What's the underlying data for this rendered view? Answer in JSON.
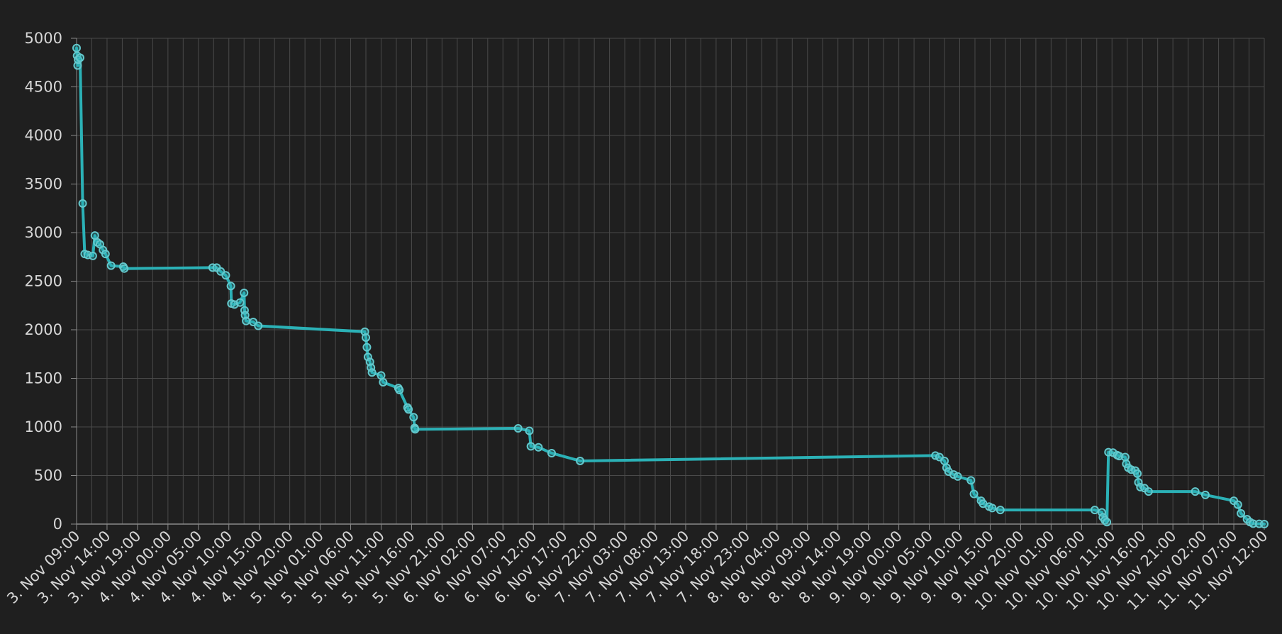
{
  "colors": {
    "background": "#1f1f1f",
    "grid": "#4a4a4a",
    "axis": "#8a8a8a",
    "tick_text": "#d6d6d6",
    "series": "#2bb1b6",
    "point_stroke": "#63c8cc"
  },
  "chart_data": {
    "type": "line",
    "title": "",
    "xlabel": "",
    "ylabel": "",
    "grid": true,
    "legend": "none",
    "ylim": [
      0,
      5000
    ],
    "y_ticks": [
      0,
      500,
      1000,
      1500,
      2000,
      2500,
      3000,
      3500,
      4000,
      4500,
      5000
    ],
    "x_range": [
      "3. Nov 09:00",
      "11. Nov 12:00"
    ],
    "x_ticks": [
      "3. Nov 09:00",
      "3. Nov 14:00",
      "3. Nov 19:00",
      "4. Nov 00:00",
      "4. Nov 05:00",
      "4. Nov 10:00",
      "4. Nov 15:00",
      "4. Nov 20:00",
      "5. Nov 01:00",
      "5. Nov 06:00",
      "5. Nov 11:00",
      "5. Nov 16:00",
      "5. Nov 21:00",
      "6. Nov 02:00",
      "6. Nov 07:00",
      "6. Nov 12:00",
      "6. Nov 17:00",
      "6. Nov 22:00",
      "7. Nov 03:00",
      "7. Nov 08:00",
      "7. Nov 13:00",
      "7. Nov 18:00",
      "7. Nov 23:00",
      "8. Nov 04:00",
      "8. Nov 09:00",
      "8. Nov 14:00",
      "8. Nov 19:00",
      "9. Nov 00:00",
      "9. Nov 05:00",
      "9. Nov 10:00",
      "9. Nov 15:00",
      "9. Nov 20:00",
      "10. Nov 01:00",
      "10. Nov 06:00",
      "10. Nov 11:00",
      "10. Nov 16:00",
      "10. Nov 21:00",
      "11. Nov 02:00",
      "11. Nov 07:00",
      "11. Nov 12:00"
    ],
    "series": [
      {
        "color": "#2bb1b6",
        "points": [
          {
            "x": "3. Nov 09:00",
            "y": 4900
          },
          {
            "x": "3. Nov 09:05",
            "y": 4820
          },
          {
            "x": "3. Nov 09:10",
            "y": 4720
          },
          {
            "x": "3. Nov 09:15",
            "y": 4780
          },
          {
            "x": "3. Nov 09:35",
            "y": 4800
          },
          {
            "x": "3. Nov 10:00",
            "y": 3300
          },
          {
            "x": "3. Nov 10:20",
            "y": 2780
          },
          {
            "x": "3. Nov 10:50",
            "y": 2770
          },
          {
            "x": "3. Nov 11:40",
            "y": 2760
          },
          {
            "x": "3. Nov 12:00",
            "y": 2970
          },
          {
            "x": "3. Nov 12:25",
            "y": 2900
          },
          {
            "x": "3. Nov 12:50",
            "y": 2880
          },
          {
            "x": "3. Nov 13:20",
            "y": 2820
          },
          {
            "x": "3. Nov 13:45",
            "y": 2780
          },
          {
            "x": "3. Nov 14:40",
            "y": 2660
          },
          {
            "x": "3. Nov 16:40",
            "y": 2650
          },
          {
            "x": "3. Nov 16:50",
            "y": 2630
          },
          {
            "x": "4. Nov 07:20",
            "y": 2640
          },
          {
            "x": "4. Nov 08:00",
            "y": 2640
          },
          {
            "x": "4. Nov 08:40",
            "y": 2600
          },
          {
            "x": "4. Nov 09:30",
            "y": 2560
          },
          {
            "x": "4. Nov 10:20",
            "y": 2450
          },
          {
            "x": "4. Nov 10:25",
            "y": 2270
          },
          {
            "x": "4. Nov 10:55",
            "y": 2260
          },
          {
            "x": "4. Nov 11:50",
            "y": 2280
          },
          {
            "x": "4. Nov 12:30",
            "y": 2380
          },
          {
            "x": "4. Nov 12:35",
            "y": 2200
          },
          {
            "x": "4. Nov 12:40",
            "y": 2150
          },
          {
            "x": "4. Nov 12:50",
            "y": 2090
          },
          {
            "x": "4. Nov 14:00",
            "y": 2080
          },
          {
            "x": "4. Nov 14:50",
            "y": 2040
          },
          {
            "x": "5. Nov 08:20",
            "y": 1980
          },
          {
            "x": "5. Nov 08:30",
            "y": 1920
          },
          {
            "x": "5. Nov 08:40",
            "y": 1820
          },
          {
            "x": "5. Nov 08:50",
            "y": 1720
          },
          {
            "x": "5. Nov 09:10",
            "y": 1670
          },
          {
            "x": "5. Nov 09:20",
            "y": 1610
          },
          {
            "x": "5. Nov 09:30",
            "y": 1560
          },
          {
            "x": "5. Nov 11:00",
            "y": 1530
          },
          {
            "x": "5. Nov 11:20",
            "y": 1460
          },
          {
            "x": "5. Nov 13:50",
            "y": 1400
          },
          {
            "x": "5. Nov 14:00",
            "y": 1380
          },
          {
            "x": "5. Nov 15:20",
            "y": 1200
          },
          {
            "x": "5. Nov 15:30",
            "y": 1180
          },
          {
            "x": "5. Nov 16:20",
            "y": 1100
          },
          {
            "x": "5. Nov 16:30",
            "y": 990
          },
          {
            "x": "5. Nov 16:35",
            "y": 975
          },
          {
            "x": "6. Nov 09:30",
            "y": 985
          },
          {
            "x": "6. Nov 11:20",
            "y": 960
          },
          {
            "x": "6. Nov 11:35",
            "y": 800
          },
          {
            "x": "6. Nov 12:50",
            "y": 790
          },
          {
            "x": "6. Nov 15:00",
            "y": 730
          },
          {
            "x": "6. Nov 19:40",
            "y": 650
          },
          {
            "x": "9. Nov 06:00",
            "y": 705
          },
          {
            "x": "9. Nov 06:40",
            "y": 690
          },
          {
            "x": "9. Nov 07:30",
            "y": 650
          },
          {
            "x": "9. Nov 07:50",
            "y": 580
          },
          {
            "x": "9. Nov 08:10",
            "y": 540
          },
          {
            "x": "9. Nov 09:00",
            "y": 510
          },
          {
            "x": "9. Nov 09:40",
            "y": 490
          },
          {
            "x": "9. Nov 11:50",
            "y": 450
          },
          {
            "x": "9. Nov 12:20",
            "y": 310
          },
          {
            "x": "9. Nov 13:30",
            "y": 240
          },
          {
            "x": "9. Nov 13:50",
            "y": 210
          },
          {
            "x": "9. Nov 14:50",
            "y": 180
          },
          {
            "x": "9. Nov 15:20",
            "y": 165
          },
          {
            "x": "9. Nov 16:40",
            "y": 145
          },
          {
            "x": "10. Nov 08:10",
            "y": 145
          },
          {
            "x": "10. Nov 09:20",
            "y": 120
          },
          {
            "x": "10. Nov 09:30",
            "y": 70
          },
          {
            "x": "10. Nov 09:50",
            "y": 40
          },
          {
            "x": "10. Nov 10:10",
            "y": 20
          },
          {
            "x": "10. Nov 10:25",
            "y": 740
          },
          {
            "x": "10. Nov 11:10",
            "y": 735
          },
          {
            "x": "10. Nov 11:50",
            "y": 710
          },
          {
            "x": "10. Nov 12:10",
            "y": 700
          },
          {
            "x": "10. Nov 13:10",
            "y": 690
          },
          {
            "x": "10. Nov 13:20",
            "y": 620
          },
          {
            "x": "10. Nov 13:40",
            "y": 580
          },
          {
            "x": "10. Nov 14:10",
            "y": 560
          },
          {
            "x": "10. Nov 14:50",
            "y": 550
          },
          {
            "x": "10. Nov 15:10",
            "y": 520
          },
          {
            "x": "10. Nov 15:20",
            "y": 430
          },
          {
            "x": "10. Nov 15:40",
            "y": 380
          },
          {
            "x": "10. Nov 16:20",
            "y": 370
          },
          {
            "x": "10. Nov 17:00",
            "y": 335
          },
          {
            "x": "11. Nov 00:40",
            "y": 335
          },
          {
            "x": "11. Nov 02:20",
            "y": 300
          },
          {
            "x": "11. Nov 07:00",
            "y": 240
          },
          {
            "x": "11. Nov 07:40",
            "y": 200
          },
          {
            "x": "11. Nov 08:10",
            "y": 110
          },
          {
            "x": "11. Nov 09:10",
            "y": 50
          },
          {
            "x": "11. Nov 09:40",
            "y": 20
          },
          {
            "x": "11. Nov 10:10",
            "y": 5
          },
          {
            "x": "11. Nov 11:10",
            "y": 3
          },
          {
            "x": "11. Nov 12:00",
            "y": 0
          }
        ]
      }
    ]
  }
}
